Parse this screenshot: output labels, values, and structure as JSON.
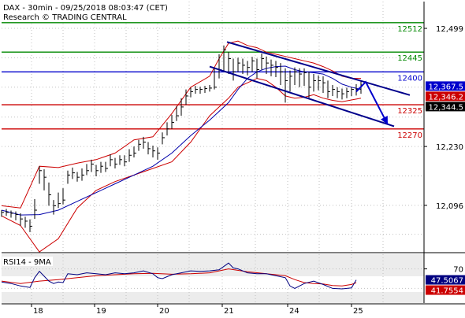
{
  "header": {
    "line1": "DAX - 30min - 09/25/2018 08:03:47 (CET)",
    "line2": "Research © TRADING CENTRAL"
  },
  "rsi_title": "RSI14 - 9MA",
  "colors": {
    "price": "#000000",
    "bollinger": "#cc0000",
    "moving_average": "#0000aa",
    "resistance": "#008800",
    "pivot": "#0000cc",
    "support": "#cc0000",
    "channel": "#00008b",
    "rsi": "#000080",
    "rsi_signal": "#cc0000",
    "grid": "#c0c0c0"
  },
  "chart_data": [
    {
      "type": "line",
      "title": "DAX - 30min - 09/25/2018 08:03:47 (CET)",
      "subtitle": "Research © TRADING CENTRAL",
      "x_labels": [
        "18",
        "19",
        "20",
        "21",
        "24",
        "25"
      ],
      "y_ticks": [
        12096,
        12230,
        12499
      ],
      "ylim": [
        11990,
        12560
      ],
      "grid": true,
      "levels": [
        {
          "label": "12512",
          "value": 12512,
          "kind": "resistance"
        },
        {
          "label": "12445",
          "value": 12445,
          "kind": "resistance"
        },
        {
          "label": "12400",
          "value": 12400,
          "kind": "pivot"
        },
        {
          "label": "12325",
          "value": 12325,
          "kind": "support"
        },
        {
          "label": "12270",
          "value": 12270,
          "kind": "support"
        }
      ],
      "value_tags": [
        {
          "label": "12,367.5",
          "value": 12367.5,
          "color": "#0000cc"
        },
        {
          "label": "12,346.2",
          "value": 12346.2,
          "color": "#cc0000"
        },
        {
          "label": "12,344.5",
          "value": 12344.5,
          "color": "#000000"
        }
      ],
      "series": [
        {
          "kind": "price",
          "x": [
            0,
            6,
            12,
            18,
            24,
            30,
            36,
            42,
            48,
            54,
            60,
            66,
            72,
            78,
            84,
            90,
            96,
            102,
            108,
            114,
            120,
            126,
            132,
            138,
            144,
            150,
            156,
            162,
            168,
            174,
            180,
            186,
            192,
            198,
            204,
            210,
            216,
            222,
            228,
            234,
            240,
            246,
            252,
            258,
            264,
            270,
            276,
            282,
            288,
            294,
            300,
            306,
            312,
            318,
            324,
            330,
            336,
            342,
            348,
            354,
            360,
            366,
            372,
            378,
            384,
            390,
            396,
            402,
            408,
            414,
            420,
            426,
            432,
            438,
            444,
            450,
            456
          ],
          "values": [
            12080,
            12080,
            12078,
            12075,
            12065,
            12060,
            12048,
            12085,
            12175,
            12160,
            12120,
            12095,
            12100,
            12108,
            12165,
            12170,
            12160,
            12165,
            12175,
            12190,
            12175,
            12185,
            12180,
            12200,
            12190,
            12200,
            12195,
            12210,
            12215,
            12235,
            12240,
            12225,
            12220,
            12215,
            12250,
            12270,
            12285,
            12300,
            12320,
            12345,
            12355,
            12360,
            12360,
            12362,
            12363,
            12365,
            12405,
            12450,
            12430,
            12400,
            12420,
            12415,
            12410,
            12425,
            12405,
            12430,
            12420,
            12415,
            12410,
            12400,
            12380,
            12390,
            12400,
            12395,
            12398,
            12365,
            12380,
            12380,
            12375,
            12355,
            12360,
            12355,
            12350,
            12355,
            12360,
            12360,
            12370
          ],
          "highs": [
            12085,
            12088,
            12084,
            12082,
            12078,
            12070,
            12064,
            12110,
            12185,
            12178,
            12148,
            12108,
            12125,
            12135,
            12175,
            12182,
            12172,
            12180,
            12190,
            12200,
            12188,
            12195,
            12195,
            12212,
            12204,
            12210,
            12210,
            12224,
            12230,
            12245,
            12252,
            12240,
            12232,
            12228,
            12262,
            12285,
            12302,
            12322,
            12340,
            12360,
            12364,
            12368,
            12366,
            12368,
            12370,
            12410,
            12440,
            12460,
            12445,
            12430,
            12432,
            12430,
            12425,
            12434,
            12430,
            12442,
            12435,
            12428,
            12425,
            12420,
            12408,
            12403,
            12410,
            12408,
            12408,
            12400,
            12395,
            12392,
            12390,
            12380,
            12370,
            12365,
            12362,
            12364,
            12365,
            12372,
            12380
          ],
          "lows": [
            12070,
            12072,
            12068,
            12062,
            12050,
            12045,
            12035,
            12065,
            12145,
            12130,
            12095,
            12075,
            12090,
            12098,
            12145,
            12156,
            12150,
            12152,
            12165,
            12172,
            12162,
            12170,
            12172,
            12185,
            12180,
            12188,
            12185,
            12195,
            12205,
            12220,
            12225,
            12212,
            12205,
            12200,
            12235,
            12255,
            12270,
            12288,
            12300,
            12325,
            12342,
            12350,
            12350,
            12352,
            12355,
            12360,
            12385,
            12400,
            12395,
            12380,
            12400,
            12395,
            12392,
            12400,
            12385,
            12405,
            12395,
            12390,
            12388,
            12370,
            12330,
            12355,
            12370,
            12365,
            12368,
            12340,
            12355,
            12358,
            12352,
            12340,
            12345,
            12340,
            12337,
            12340,
            12345,
            12346,
            12350
          ]
        },
        {
          "kind": "bollinger_upper",
          "x": [
            0,
            24,
            48,
            72,
            96,
            120,
            144,
            168,
            192,
            216,
            240,
            264,
            276,
            288,
            300,
            312,
            324,
            336,
            348,
            360,
            372,
            384,
            396,
            408,
            420,
            432,
            444,
            456
          ],
          "values": [
            12095,
            12090,
            12185,
            12182,
            12192,
            12200,
            12215,
            12245,
            12252,
            12305,
            12365,
            12390,
            12430,
            12465,
            12470,
            12460,
            12455,
            12445,
            12440,
            12435,
            12430,
            12425,
            12420,
            12412,
            12402,
            12390,
            12385,
            12385
          ]
        },
        {
          "kind": "bollinger_lower",
          "x": [
            0,
            24,
            48,
            72,
            96,
            120,
            144,
            168,
            192,
            216,
            240,
            264,
            276,
            288,
            300,
            312,
            324,
            336,
            348,
            360,
            372,
            384,
            396,
            408,
            420,
            432,
            444,
            456
          ],
          "values": [
            12072,
            12050,
            11990,
            12020,
            12090,
            12130,
            12150,
            12165,
            12180,
            12195,
            12240,
            12300,
            12320,
            12340,
            12365,
            12375,
            12385,
            12380,
            12365,
            12345,
            12340,
            12342,
            12348,
            12340,
            12335,
            12332,
            12336,
            12340
          ]
        },
        {
          "kind": "moving_average",
          "x": [
            0,
            24,
            48,
            72,
            96,
            120,
            144,
            168,
            192,
            216,
            240,
            264,
            276,
            288,
            300,
            312,
            324,
            336,
            348,
            360,
            372,
            384,
            396,
            408,
            420,
            432,
            444,
            456
          ],
          "values": [
            12085,
            12074,
            12075,
            12085,
            12105,
            12125,
            12145,
            12165,
            12185,
            12215,
            12255,
            12290,
            12310,
            12330,
            12360,
            12385,
            12400,
            12408,
            12412,
            12413,
            12405,
            12400,
            12398,
            12395,
            12385,
            12372,
            12365,
            12360
          ]
        },
        {
          "kind": "channel_upper",
          "x": [
            286,
            518
          ],
          "values": [
            12468,
            12347
          ]
        },
        {
          "kind": "channel_lower",
          "x": [
            264,
            498
          ],
          "values": [
            12412,
            12276
          ]
        },
        {
          "kind": "projection",
          "x": [
            450,
            462,
            490
          ],
          "values": [
            12355,
            12377,
            12280
          ]
        }
      ]
    },
    {
      "type": "line",
      "title": "RSI14 - 9MA",
      "ylim": [
        0,
        100
      ],
      "y_ticks": [
        70
      ],
      "value_tags": [
        {
          "label": "47.5067",
          "value": 47.5067,
          "color": "#000080"
        },
        {
          "label": "41.7554",
          "value": 41.7554,
          "color": "#cc0000"
        }
      ],
      "series": [
        {
          "kind": "rsi",
          "x": [
            0,
            12,
            24,
            36,
            42,
            48,
            54,
            60,
            66,
            72,
            78,
            84,
            96,
            108,
            120,
            132,
            144,
            156,
            168,
            180,
            192,
            198,
            204,
            216,
            228,
            240,
            252,
            264,
            276,
            288,
            294,
            300,
            312,
            324,
            336,
            348,
            360,
            366,
            372,
            384,
            396,
            408,
            420,
            432,
            444,
            450
          ],
          "values": [
            43,
            40,
            35,
            32,
            52,
            65,
            55,
            45,
            40,
            43,
            42,
            60,
            58,
            62,
            60,
            58,
            62,
            60,
            62,
            66,
            60,
            52,
            50,
            58,
            62,
            66,
            65,
            66,
            68,
            82,
            72,
            70,
            62,
            60,
            60,
            56,
            52,
            35,
            30,
            40,
            45,
            38,
            30,
            29,
            31,
            47.5
          ]
        },
        {
          "kind": "rsi_signal",
          "x": [
            0,
            24,
            48,
            72,
            96,
            120,
            144,
            168,
            192,
            216,
            240,
            264,
            288,
            312,
            336,
            360,
            372,
            384,
            396,
            408,
            420,
            432,
            444,
            450
          ],
          "values": [
            45,
            40,
            45,
            48,
            52,
            56,
            58,
            60,
            61,
            59,
            60,
            62,
            70,
            64,
            60,
            56,
            48,
            42,
            40,
            39,
            36,
            35,
            38,
            41.8
          ]
        }
      ]
    }
  ]
}
